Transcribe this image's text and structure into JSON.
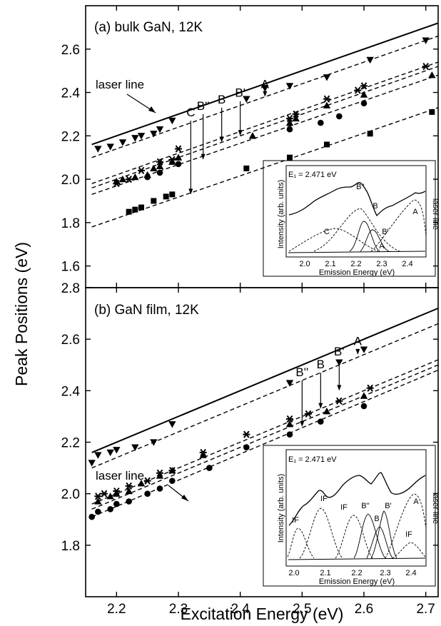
{
  "chart_data": [
    {
      "type": "scatter",
      "panel_label": "(a) bulk GaN, 12K",
      "xlabel": "Excitation Energy (eV)",
      "ylabel": "Peak Positions (eV)",
      "xlim": [
        2.15,
        2.72
      ],
      "ylim": [
        1.5,
        2.8
      ],
      "xticks": [
        "2.2",
        "2.3",
        "2.4",
        "2.5",
        "2.6",
        "2.7"
      ],
      "yticks": [
        "1.6",
        "1.8",
        "2.0",
        "2.2",
        "2.4",
        "2.6"
      ],
      "laser_line_label": "laser line",
      "laser_line": {
        "x": [
          2.16,
          2.72
        ],
        "y": [
          2.16,
          2.72
        ]
      },
      "series": [
        {
          "marker": "triangle-down",
          "x": [
            2.17,
            2.19,
            2.21,
            2.23,
            2.24,
            2.26,
            2.27,
            2.29,
            2.41,
            2.44,
            2.48,
            2.54,
            2.61,
            2.7
          ],
          "y": [
            2.14,
            2.15,
            2.17,
            2.19,
            2.2,
            2.21,
            2.23,
            2.27,
            2.37,
            2.42,
            2.43,
            2.47,
            2.55,
            2.64
          ],
          "fit": {
            "x": [
              2.16,
              2.72
            ],
            "y": [
              2.1,
              2.66
            ]
          }
        },
        {
          "marker": "star",
          "x": [
            2.2,
            2.22,
            2.24,
            2.27,
            2.29,
            2.3,
            2.48,
            2.49,
            2.54,
            2.59,
            2.6,
            2.7
          ],
          "y": [
            1.98,
            2.0,
            2.04,
            2.08,
            2.09,
            2.14,
            2.28,
            2.3,
            2.37,
            2.41,
            2.43,
            2.52
          ],
          "fit": {
            "x": [
              2.16,
              2.72
            ],
            "y": [
              1.98,
              2.54
            ]
          }
        },
        {
          "marker": "triangle-up",
          "x": [
            2.2,
            2.21,
            2.23,
            2.25,
            2.26,
            2.27,
            2.29,
            2.3,
            2.42,
            2.48,
            2.49,
            2.54,
            2.6,
            2.71
          ],
          "y": [
            1.99,
            2.0,
            2.01,
            2.02,
            2.05,
            2.06,
            2.08,
            2.1,
            2.2,
            2.26,
            2.28,
            2.34,
            2.39,
            2.48
          ],
          "fit": {
            "x": [
              2.16,
              2.72
            ],
            "y": [
              1.96,
              2.52
            ]
          }
        },
        {
          "marker": "circle",
          "x": [
            2.25,
            2.27,
            2.3,
            2.48,
            2.53,
            2.56,
            2.6
          ],
          "y": [
            2.01,
            2.03,
            2.07,
            2.23,
            2.26,
            2.29,
            2.35
          ],
          "fit": {
            "x": [
              2.16,
              2.72
            ],
            "y": [
              1.93,
              2.48
            ]
          }
        },
        {
          "marker": "square",
          "x": [
            2.22,
            2.23,
            2.24,
            2.26,
            2.28,
            2.29,
            2.41,
            2.48,
            2.54,
            2.61,
            2.71
          ],
          "y": [
            1.85,
            1.86,
            1.87,
            1.9,
            1.92,
            1.93,
            2.05,
            2.1,
            2.16,
            2.21,
            2.31
          ],
          "fit": {
            "x": [
              2.16,
              2.72
            ],
            "y": [
              1.78,
              2.33
            ]
          }
        }
      ],
      "annotations": [
        {
          "text": "C",
          "x": 2.32,
          "y_top": 2.27,
          "y_bottom": 1.93
        },
        {
          "text": "B''",
          "x": 2.34,
          "y_top": 2.3,
          "y_bottom": 2.09
        },
        {
          "text": "B",
          "x": 2.37,
          "y_top": 2.33,
          "y_bottom": 2.17
        },
        {
          "text": "B'",
          "x": 2.4,
          "y_top": 2.36,
          "y_bottom": 2.2
        },
        {
          "text": "A",
          "x": 2.44,
          "y_top": 2.4,
          "y_bottom": 2.38
        }
      ],
      "inset": {
        "title": "E₁ = 2.471 eV",
        "ylabel": "Intensity (arb. units)",
        "xlabel": "Emission Energy (eV)",
        "xticks": [
          "2.0",
          "2.1",
          "2.2",
          "2.3",
          "2.4"
        ],
        "right_label": "laser line",
        "peak_labels": [
          "B''",
          "B",
          "C",
          "B'",
          "A",
          "A"
        ]
      }
    },
    {
      "type": "scatter",
      "panel_label": "(b) GaN film, 12K",
      "xlabel": "Excitation Energy (eV)",
      "ylabel": "Peak Positions (eV)",
      "xlim": [
        2.15,
        2.72
      ],
      "ylim": [
        1.6,
        2.8
      ],
      "xticks": [
        "2.2",
        "2.3",
        "2.4",
        "2.5",
        "2.6",
        "2.7"
      ],
      "yticks": [
        "1.8",
        "2.0",
        "2.2",
        "2.4",
        "2.6",
        "2.8"
      ],
      "laser_line_label": "laser line",
      "laser_line": {
        "x": [
          2.16,
          2.72
        ],
        "y": [
          2.16,
          2.72
        ]
      },
      "series": [
        {
          "marker": "triangle-down",
          "x": [
            2.16,
            2.17,
            2.19,
            2.2,
            2.23,
            2.26,
            2.29,
            2.48,
            2.56,
            2.6
          ],
          "y": [
            2.12,
            2.15,
            2.16,
            2.17,
            2.18,
            2.2,
            2.27,
            2.43,
            2.51,
            2.56
          ],
          "fit": {
            "x": [
              2.16,
              2.72
            ],
            "y": [
              2.1,
              2.66
            ]
          }
        },
        {
          "marker": "star",
          "x": [
            2.17,
            2.18,
            2.2,
            2.22,
            2.25,
            2.27,
            2.29,
            2.34,
            2.41,
            2.48,
            2.51,
            2.56,
            2.61
          ],
          "y": [
            1.99,
            2.0,
            2.01,
            2.03,
            2.05,
            2.08,
            2.09,
            2.16,
            2.23,
            2.29,
            2.31,
            2.36,
            2.41
          ],
          "fit": {
            "x": [
              2.16,
              2.72
            ],
            "y": [
              1.96,
              2.52
            ]
          }
        },
        {
          "marker": "triangle-up",
          "x": [
            2.17,
            2.19,
            2.2,
            2.22,
            2.24,
            2.27,
            2.29,
            2.34,
            2.48,
            2.54,
            2.6
          ],
          "y": [
            1.97,
            1.99,
            2.0,
            2.01,
            2.04,
            2.07,
            2.09,
            2.15,
            2.27,
            2.32,
            2.38
          ],
          "fit": {
            "x": [
              2.16,
              2.72
            ],
            "y": [
              1.94,
              2.5
            ]
          }
        },
        {
          "marker": "circle",
          "x": [
            2.16,
            2.17,
            2.19,
            2.2,
            2.22,
            2.25,
            2.27,
            2.29,
            2.35,
            2.41,
            2.48,
            2.53,
            2.6
          ],
          "y": [
            1.91,
            1.93,
            1.94,
            1.96,
            1.97,
            2.0,
            2.02,
            2.05,
            2.1,
            2.18,
            2.23,
            2.28,
            2.34
          ],
          "fit": {
            "x": [
              2.16,
              2.72
            ],
            "y": [
              1.91,
              2.48
            ]
          }
        }
      ],
      "annotations": [
        {
          "text": "B''",
          "x": 2.5,
          "y_top": 2.44,
          "y_bottom": 2.26
        },
        {
          "text": "B",
          "x": 2.53,
          "y_top": 2.47,
          "y_bottom": 2.33
        },
        {
          "text": "B'",
          "x": 2.56,
          "y_top": 2.52,
          "y_bottom": 2.4
        },
        {
          "text": "A",
          "x": 2.59,
          "y_top": 2.56,
          "y_bottom": 2.54
        }
      ],
      "inset": {
        "title": "E₁ = 2.471 eV",
        "ylabel": "Intensity (arb. units)",
        "xlabel": "Emission Energy (eV)",
        "xticks": [
          "2.0",
          "2.1",
          "2.2",
          "2.3",
          "2.4"
        ],
        "right_label": "laser line",
        "peak_labels": [
          "IF",
          "IF",
          "IF",
          "B''",
          "B",
          "B'",
          "A",
          "IF"
        ]
      }
    }
  ]
}
